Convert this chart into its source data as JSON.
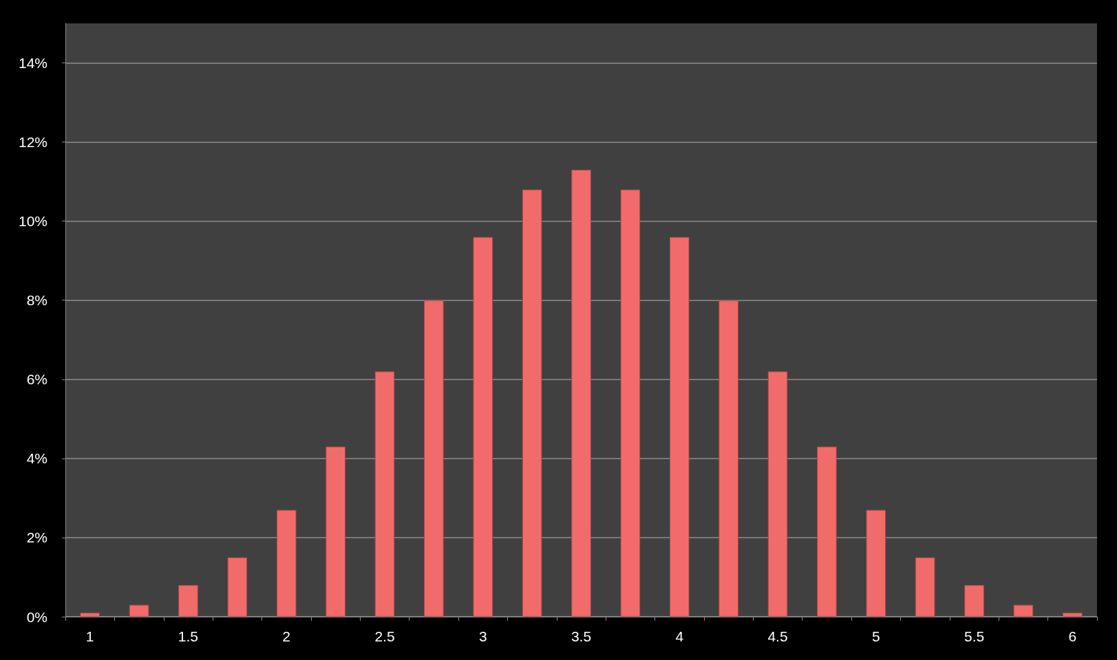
{
  "chart_data": {
    "type": "bar",
    "categories": [
      "1",
      null,
      "1.5",
      null,
      "2",
      null,
      "2.5",
      null,
      "3",
      null,
      "3.5",
      null,
      "4",
      null,
      "4.5",
      null,
      "5",
      null,
      "5.5",
      null,
      "6"
    ],
    "values": [
      0.1,
      0.3,
      0.8,
      1.5,
      2.7,
      4.3,
      6.2,
      8.0,
      9.6,
      10.8,
      11.3,
      10.8,
      9.6,
      8.0,
      6.2,
      4.3,
      2.7,
      1.5,
      0.8,
      0.3,
      0.1
    ],
    "color": "#f26b6b",
    "ylim": [
      0,
      15
    ],
    "yticks": [
      {
        "value": 0,
        "label": "0%"
      },
      {
        "value": 2,
        "label": "2%"
      },
      {
        "value": 4,
        "label": "4%"
      },
      {
        "value": 6,
        "label": "6%"
      },
      {
        "value": 8,
        "label": "8%"
      },
      {
        "value": 10,
        "label": "10%"
      },
      {
        "value": 12,
        "label": "12%"
      },
      {
        "value": 14,
        "label": "14%"
      }
    ],
    "grid": "y"
  }
}
